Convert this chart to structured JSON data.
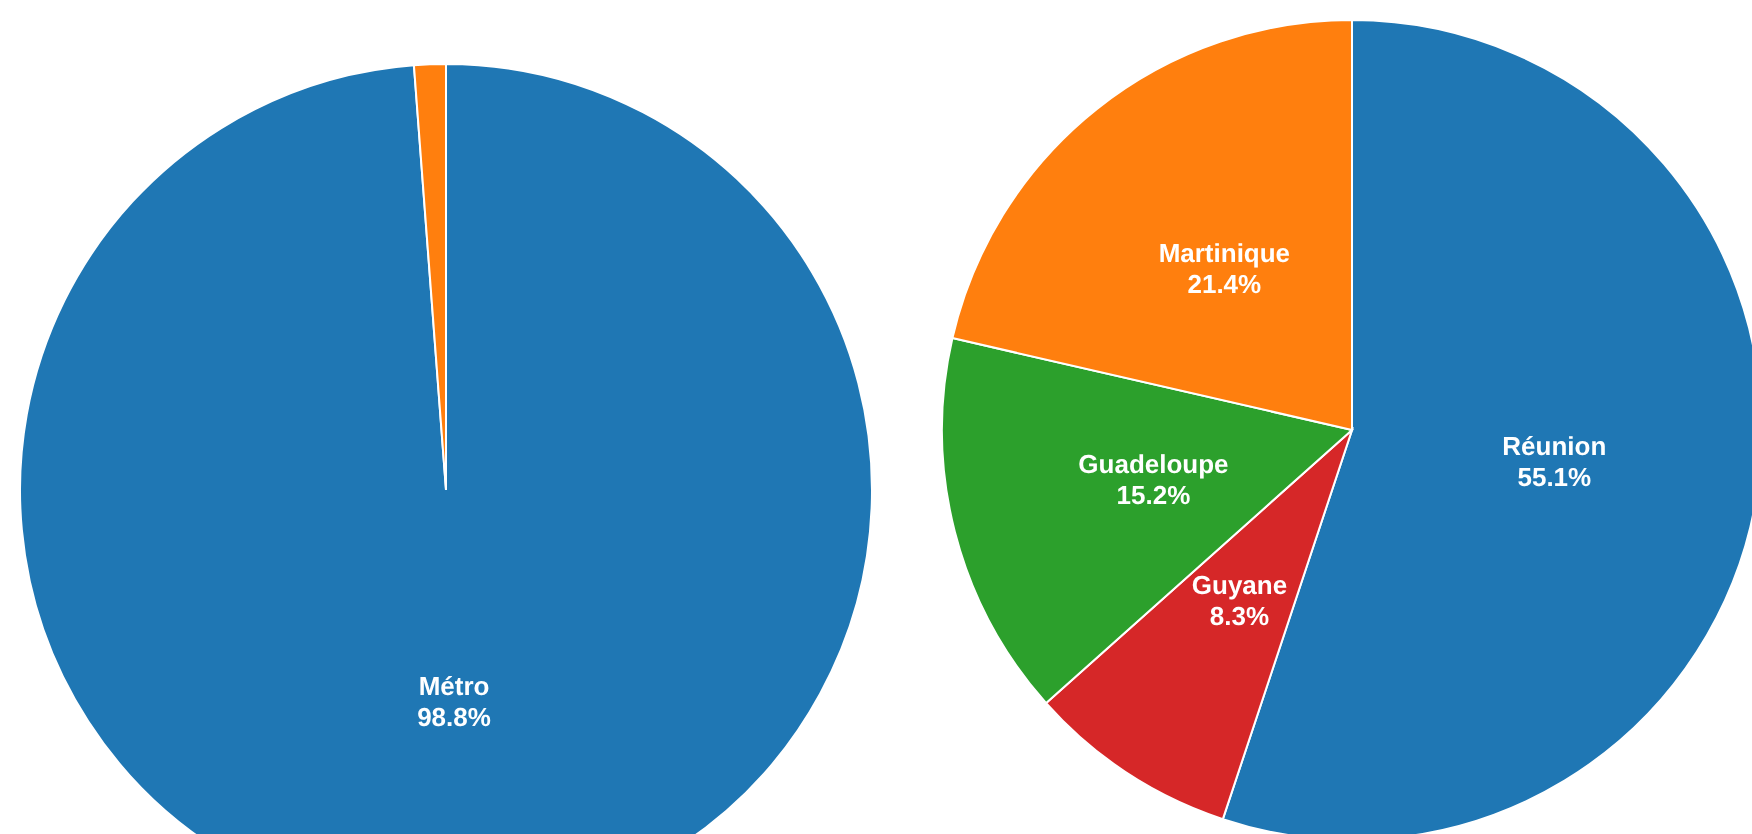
{
  "chart_data": [
    {
      "type": "pie",
      "categories": [
        "Métro",
        null
      ],
      "values": [
        98.8,
        1.2
      ],
      "colors": [
        "#1f77b4",
        "#ff7f0e"
      ],
      "value_labels": [
        "98.8%",
        null
      ]
    },
    {
      "type": "pie",
      "categories": [
        "Réunion",
        "Guyane",
        "Guadeloupe",
        "Martinique"
      ],
      "values": [
        55.1,
        8.3,
        15.2,
        21.4
      ],
      "colors": [
        "#1f77b4",
        "#d62728",
        "#2ca02c",
        "#ff7f0e"
      ],
      "value_labels": [
        "55.1%",
        "8.3%",
        "15.2%",
        "21.4%"
      ]
    }
  ]
}
